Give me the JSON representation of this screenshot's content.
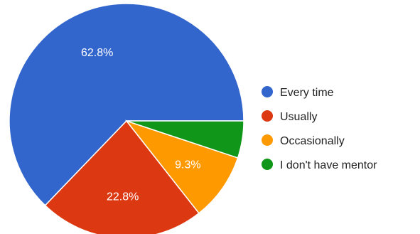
{
  "chart_data": {
    "type": "pie",
    "slices": [
      {
        "label": "Every time",
        "value": 62.8,
        "display": "62.8%",
        "color": "#3366cc",
        "show_label": true
      },
      {
        "label": "Usually",
        "value": 22.8,
        "display": "22.8%",
        "color": "#dc3912",
        "show_label": true
      },
      {
        "label": "Occasionally",
        "value": 9.3,
        "display": "9.3%",
        "color": "#ff9900",
        "show_label": true
      },
      {
        "label": "I don't have mentor",
        "value": 5.1,
        "display": "5.1%",
        "color": "#109618",
        "show_label": false
      }
    ],
    "start_direction": "right (3 o'clock), counterclockwise",
    "legend_position": "right"
  }
}
